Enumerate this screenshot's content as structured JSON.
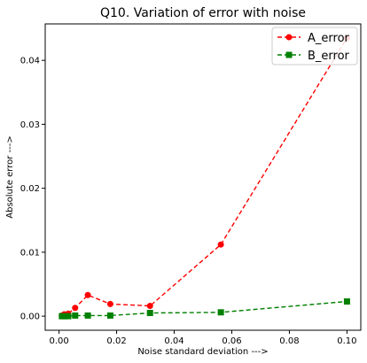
{
  "chart_data": {
    "type": "line",
    "title": "Q10. Variation of error with noise",
    "xlabel": "Noise standard deviation   --->",
    "ylabel": "Absolute error   --->",
    "xlim": [
      -0.0048,
      0.1048
    ],
    "ylim": [
      -0.0022,
      0.0457
    ],
    "xticks": [
      0.0,
      0.02,
      0.04,
      0.06,
      0.08,
      0.1
    ],
    "xtick_labels": [
      "0.00",
      "0.02",
      "0.04",
      "0.06",
      "0.08",
      "0.10"
    ],
    "yticks": [
      0.0,
      0.01,
      0.02,
      0.03,
      0.04
    ],
    "ytick_labels": [
      "0.00",
      "0.01",
      "0.02",
      "0.03",
      "0.04"
    ],
    "grid": false,
    "legend_position": "top-right",
    "series": [
      {
        "name": "A_error",
        "color": "#ff0000",
        "marker": "circle",
        "linestyle": "dashed",
        "x": [
          0.001,
          0.0018,
          0.0032,
          0.0056,
          0.01,
          0.0178,
          0.0316,
          0.0562,
          0.1
        ],
        "y": [
          0.0001,
          0.0003,
          0.0004,
          0.0013,
          0.0033,
          0.0019,
          0.0016,
          0.0112,
          0.0435
        ]
      },
      {
        "name": "B_error",
        "color": "#008000",
        "marker": "square",
        "linestyle": "dashed",
        "x": [
          0.001,
          0.0018,
          0.0032,
          0.0056,
          0.01,
          0.0178,
          0.0316,
          0.0562,
          0.1
        ],
        "y": [
          0.0,
          0.0,
          0.0,
          0.0001,
          0.0001,
          0.0001,
          0.0005,
          0.0006,
          0.0023
        ]
      }
    ]
  }
}
